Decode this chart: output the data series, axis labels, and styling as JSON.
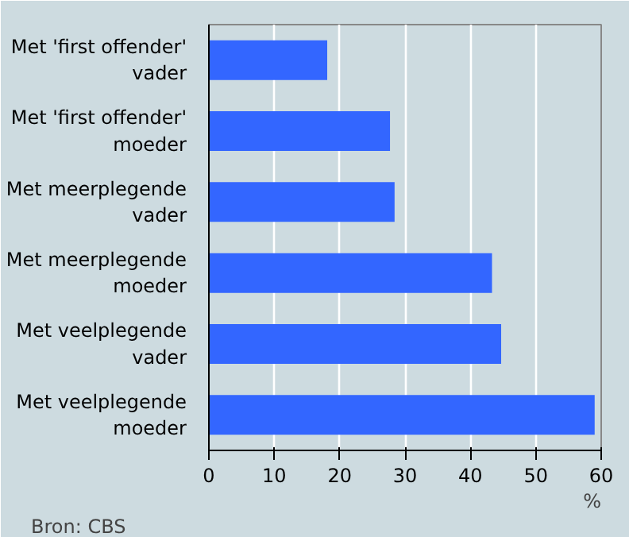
{
  "chart_data": {
    "type": "bar",
    "orientation": "horizontal",
    "categories": [
      "Met 'first offender'\nvader",
      "Met 'first offender'\nmoeder",
      "Met meerplegende\nvader",
      "Met meerplegende\nmoeder",
      "Met veelplegende\nvader",
      "Met veelplegende\nmoeder"
    ],
    "values": [
      18.1,
      27.7,
      28.4,
      43.3,
      44.7,
      59.0
    ],
    "color": "#3366ff",
    "xlim": [
      0,
      60
    ],
    "xticks": [
      0,
      10,
      20,
      30,
      40,
      50,
      60
    ],
    "xlabel": "%",
    "grid": "x",
    "annotations": [
      "Bron: CBS"
    ]
  }
}
